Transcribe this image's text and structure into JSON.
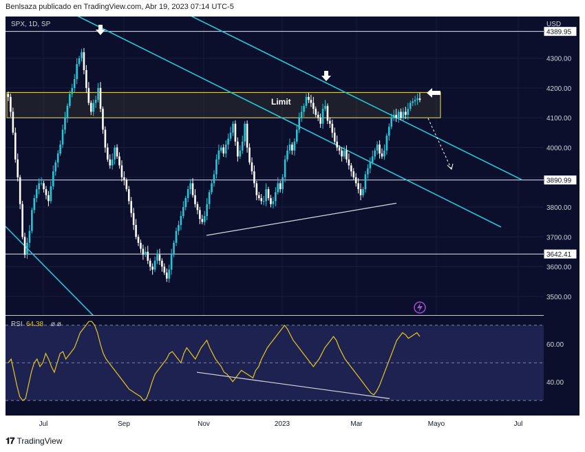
{
  "header": {
    "text": "Benlsaza publicado en TradingView.com, Abr 19, 2023 07:14 UTC-5"
  },
  "symbol": {
    "text": "SPX, 1D, SP"
  },
  "currency": "USD",
  "zone_label": "Limit",
  "rsi_label": {
    "name": "RSI",
    "value": "64.38",
    "extra": "ø ø"
  },
  "footer": {
    "brand": "TradingView"
  },
  "colors": {
    "background": "#0b0f2b",
    "up": "#26c6da",
    "down": "#ffffff",
    "channel": "#26c6da",
    "zone": "#f5e642",
    "rsi_line": "#e6c81a",
    "rsi_band": "#1e2250"
  },
  "chart_data": [
    {
      "type": "candlestick",
      "title": "SPX, 1D, SP",
      "x_tick_labels": [
        "Jul",
        "Sep",
        "Nov",
        "2023",
        "Mar",
        "Mayo",
        "Jul"
      ],
      "y_ticks": [
        3500,
        3600,
        3700,
        3800,
        3900,
        4000,
        4100,
        4200,
        4300
      ],
      "y_tick_labels": [
        "3500.00",
        "3600.00",
        "3700.00",
        "3800.00",
        "3900.00",
        "4000.00",
        "4100.00",
        "4200.00",
        "4300.00"
      ],
      "ylim": [
        3435,
        4440
      ],
      "price_labels": [
        "4389.95",
        "3890.99",
        "3642.41"
      ],
      "horizontal_levels": [
        4389.95,
        3890.99,
        3642.41
      ],
      "zone": {
        "label": "Limit",
        "low": 4100,
        "high": 4185
      },
      "series": [
        {
          "close": [
            4170,
            4120,
            4050,
            3960,
            3900,
            3810,
            3700,
            3640,
            3680,
            3720,
            3790,
            3830,
            3860,
            3880,
            3880,
            3860,
            3840,
            3820,
            3870,
            3920,
            3950,
            3980,
            4010,
            4060,
            4100,
            4140,
            4180,
            4200,
            4230,
            4280,
            4300,
            4320,
            4260,
            4200,
            4150,
            4120,
            4150,
            4160,
            4200,
            4130,
            4060,
            4000,
            3960,
            3940,
            3960,
            4000,
            3970,
            3940,
            3900,
            3890,
            3860,
            3820,
            3780,
            3740,
            3700,
            3680,
            3660,
            3640,
            3650,
            3620,
            3600,
            3590,
            3620,
            3640,
            3620,
            3600,
            3580,
            3560,
            3590,
            3640,
            3680,
            3720,
            3740,
            3770,
            3800,
            3830,
            3860,
            3880,
            3840,
            3810,
            3790,
            3760,
            3750,
            3770,
            3810,
            3850,
            3880,
            3910,
            3960,
            3990,
            4000,
            3980,
            4010,
            4030,
            4050,
            4080,
            4020,
            3970,
            3990,
            4020,
            4080,
            4000,
            3950,
            3920,
            3880,
            3840,
            3830,
            3820,
            3820,
            3860,
            3830,
            3810,
            3820,
            3850,
            3880,
            3860,
            3900,
            3960,
            3990,
            4010,
            3990,
            4020,
            4060,
            4100,
            4120,
            4140,
            4170,
            4160,
            4150,
            4130,
            4110,
            4100,
            4080,
            4130,
            4140,
            4090,
            4080,
            4050,
            4020,
            4000,
            3990,
            3970,
            3990,
            3960,
            3940,
            3920,
            3900,
            3880,
            3860,
            3840,
            3860,
            3910,
            3930,
            3950,
            3970,
            3990,
            4010,
            3980,
            3970,
            3990,
            4040,
            4070,
            4100,
            4110,
            4100,
            4120,
            4100,
            4120,
            4110,
            4130,
            4150,
            4155,
            4160,
            4165,
            4160
          ]
        }
      ],
      "annotations": [
        {
          "type": "arrow_down",
          "label": ""
        },
        {
          "type": "arrow_down",
          "label": ""
        },
        {
          "type": "arrow_left",
          "label": ""
        },
        {
          "type": "dashed_projection",
          "label": ""
        },
        {
          "type": "trendline",
          "label": ""
        }
      ]
    },
    {
      "type": "line",
      "title": "RSI 64.38",
      "y_ticks": [
        40,
        60
      ],
      "y_tick_labels": [
        "40.00",
        "60.00"
      ],
      "ylim": [
        22,
        75
      ],
      "band": [
        30,
        70
      ],
      "series": [
        {
          "name": "RSI",
          "values": [
            50,
            52,
            45,
            38,
            32,
            30,
            31,
            38,
            45,
            50,
            52,
            48,
            50,
            55,
            52,
            48,
            45,
            50,
            55,
            56,
            52,
            54,
            56,
            58,
            62,
            66,
            68,
            70,
            72,
            72,
            70,
            66,
            60,
            55,
            52,
            50,
            48,
            46,
            44,
            42,
            40,
            38,
            36,
            35,
            34,
            33,
            32,
            30,
            31,
            35,
            40,
            44,
            46,
            48,
            50,
            52,
            55,
            56,
            54,
            52,
            50,
            55,
            58,
            56,
            54,
            52,
            55,
            58,
            60,
            62,
            58,
            55,
            52,
            50,
            48,
            45,
            44,
            42,
            40,
            42,
            44,
            46,
            45,
            44,
            43,
            42,
            46,
            48,
            52,
            55,
            58,
            60,
            62,
            64,
            66,
            68,
            70,
            68,
            65,
            62,
            60,
            58,
            56,
            54,
            52,
            50,
            48,
            50,
            52,
            55,
            58,
            60,
            62,
            64,
            62,
            58,
            55,
            52,
            50,
            48,
            46,
            44,
            42,
            40,
            38,
            36,
            34,
            33,
            35,
            38,
            42,
            46,
            50,
            54,
            58,
            62,
            64,
            66,
            65,
            63,
            64,
            65,
            66,
            64
          ]
        }
      ]
    }
  ]
}
